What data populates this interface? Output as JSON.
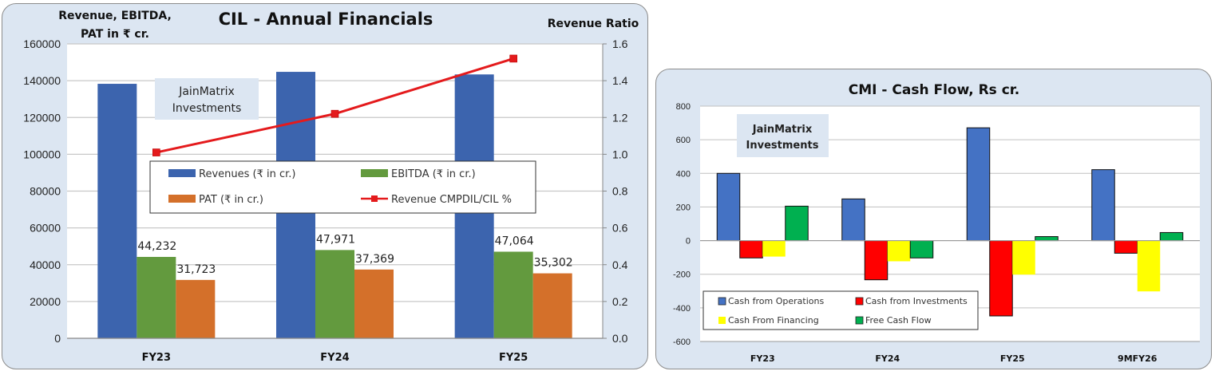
{
  "chart_data": [
    {
      "id": "left",
      "type": "bar",
      "title": "CIL - Annual Financials",
      "ylabel_lines": [
        "Revenue, EBITDA,",
        "PAT in ₹ cr."
      ],
      "y2label": "Revenue Ratio",
      "watermark_lines": [
        "JainMatrix",
        "Investments"
      ],
      "categories": [
        "FY23",
        "FY24",
        "FY25"
      ],
      "ylim": [
        0,
        160000
      ],
      "yticks": [
        "0",
        "20000",
        "40000",
        "60000",
        "80000",
        "100000",
        "120000",
        "140000",
        "160000"
      ],
      "ytick_values": [
        0,
        20000,
        40000,
        60000,
        80000,
        100000,
        120000,
        140000,
        160000
      ],
      "y2lim": [
        0,
        1.6
      ],
      "y2ticks": [
        "0.0",
        "0.2",
        "0.4",
        "0.6",
        "0.8",
        "1.0",
        "1.2",
        "1.4",
        "1.6"
      ],
      "y2tick_values": [
        0,
        0.2,
        0.4,
        0.6,
        0.8,
        1.0,
        1.2,
        1.4,
        1.6
      ],
      "grid": true,
      "legend_position": "center",
      "series": [
        {
          "name": "Revenues (₹ in cr.)",
          "kind": "bar",
          "color": "#3c64ae",
          "values": [
            138300,
            144800,
            143400
          ],
          "labels": [
            null,
            null,
            null
          ]
        },
        {
          "name": "EBITDA (₹ in cr.)",
          "kind": "bar",
          "color": "#639a3e",
          "values": [
            44232,
            47971,
            47064
          ],
          "labels": [
            "44,232",
            "47,971",
            "47,064"
          ]
        },
        {
          "name": "PAT  (₹ in cr.)",
          "kind": "bar",
          "color": "#d4702a",
          "values": [
            31723,
            37369,
            35302
          ],
          "labels": [
            "31,723",
            "37,369",
            "35,302"
          ]
        },
        {
          "name": "Revenue CMPDIL/CIL %",
          "kind": "line",
          "axis": "secondary",
          "color": "#e41a1c",
          "values": [
            1.01,
            1.22,
            1.52
          ]
        }
      ]
    },
    {
      "id": "right",
      "type": "bar",
      "title": "CMI - Cash Flow, Rs cr.",
      "watermark_lines": [
        "JainMatrix",
        "Investments"
      ],
      "categories": [
        "FY23",
        "FY24",
        "FY25",
        "9MFY26"
      ],
      "ylim": [
        -600,
        800
      ],
      "yticks": [
        "-600",
        "-400",
        "-200",
        "0",
        "200",
        "400",
        "600",
        "800"
      ],
      "ytick_values": [
        -600,
        -400,
        -200,
        0,
        200,
        400,
        600,
        800
      ],
      "grid": true,
      "legend_position": "bottom-left",
      "series": [
        {
          "name": "Cash from Operations",
          "color": "#4472c4",
          "values": [
            400,
            248,
            671,
            422
          ]
        },
        {
          "name": "Cash from Investments",
          "color": "#ff0000",
          "values": [
            -103,
            -233,
            -448,
            -75
          ]
        },
        {
          "name": "Cash From Financing",
          "color": "#ffff00",
          "values": [
            -95,
            -123,
            -202,
            -302
          ]
        },
        {
          "name": "Free Cash Flow",
          "color": "#00b050",
          "values": [
            205,
            -103,
            24,
            48
          ]
        }
      ]
    }
  ]
}
